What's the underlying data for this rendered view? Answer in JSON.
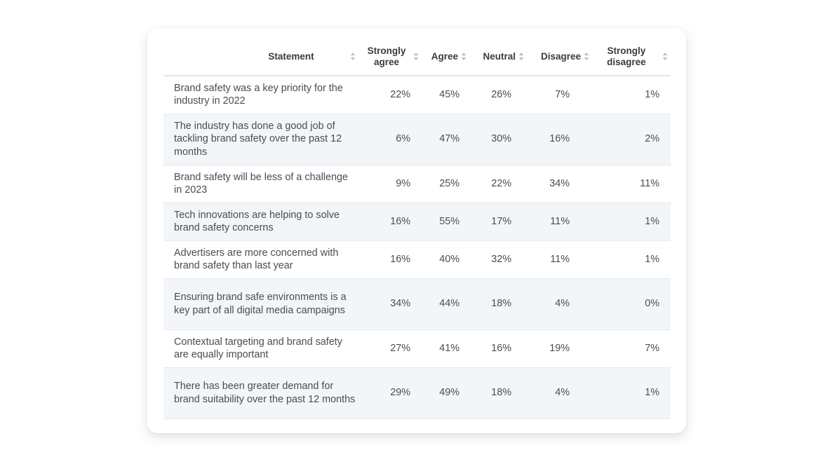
{
  "chart_data": {
    "type": "table",
    "columns": [
      {
        "key": "statement",
        "label": "Statement"
      },
      {
        "key": "strongly_agree",
        "label": "Strongly agree"
      },
      {
        "key": "agree",
        "label": "Agree"
      },
      {
        "key": "neutral",
        "label": "Neutral"
      },
      {
        "key": "disagree",
        "label": "Disagree"
      },
      {
        "key": "strongly_disagree",
        "label": "Strongly disagree"
      }
    ],
    "rows": [
      {
        "statement": "Brand safety was a key priority for the industry in 2022",
        "strongly_agree": "22%",
        "agree": "45%",
        "neutral": "26%",
        "disagree": "7%",
        "strongly_disagree": "1%"
      },
      {
        "statement": "The industry has done a good job of tackling brand safety over the past 12 months",
        "strongly_agree": "6%",
        "agree": "47%",
        "neutral": "30%",
        "disagree": "16%",
        "strongly_disagree": "2%"
      },
      {
        "statement": "Brand safety will be less of a challenge in 2023",
        "strongly_agree": "9%",
        "agree": "25%",
        "neutral": "22%",
        "disagree": "34%",
        "strongly_disagree": "11%"
      },
      {
        "statement": "Tech innovations are helping to solve brand safety concerns",
        "strongly_agree": "16%",
        "agree": "55%",
        "neutral": "17%",
        "disagree": "11%",
        "strongly_disagree": "1%"
      },
      {
        "statement": "Advertisers are more concerned with brand safety than last year",
        "strongly_agree": "16%",
        "agree": "40%",
        "neutral": "32%",
        "disagree": "11%",
        "strongly_disagree": "1%"
      },
      {
        "statement": "Ensuring brand safe environments is a key part of all digital media campaigns",
        "strongly_agree": "34%",
        "agree": "44%",
        "neutral": "18%",
        "disagree": "4%",
        "strongly_disagree": "0%"
      },
      {
        "statement": "Contextual targeting and brand safety are equally important",
        "strongly_agree": "27%",
        "agree": "41%",
        "neutral": "16%",
        "disagree": "19%",
        "strongly_disagree": "7%"
      },
      {
        "statement": "There has been greater demand for brand suitability over the past 12 months",
        "strongly_agree": "29%",
        "agree": "49%",
        "neutral": "18%",
        "disagree": "4%",
        "strongly_disagree": "1%"
      }
    ]
  },
  "icons": {
    "sort": "sort-updown-icon"
  },
  "colors": {
    "header_text": "#3a3b40",
    "body_text": "#4a4c53",
    "stripe": "#f3f6f9",
    "sort_icon": "#b9bcc4"
  }
}
